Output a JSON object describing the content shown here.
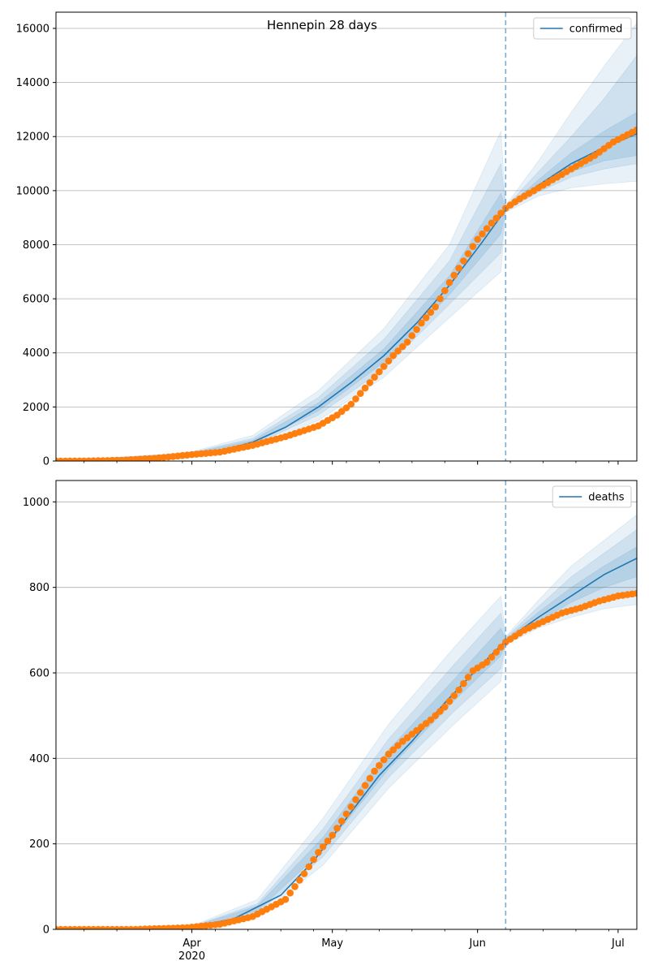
{
  "figure": {
    "title": "Hennepin 28 days"
  },
  "colors": {
    "model": "#1f77b4",
    "observed": "#ff7f0e",
    "band": "#1f77b4",
    "grid": "#b0b0b0"
  },
  "chart_data": [
    {
      "type": "line",
      "series": [
        {
          "name": "confirmed",
          "kind": "model-median"
        },
        {
          "kind": "observed-points"
        }
      ],
      "xlim": [
        "2020-03-03",
        "2020-07-05"
      ],
      "ylim": [
        0,
        16600
      ],
      "yticks": [
        0,
        2000,
        4000,
        6000,
        8000,
        10000,
        12000,
        14000,
        16000
      ],
      "yticklabels": [
        "0",
        "2000",
        "4000",
        "6000",
        "8000",
        "10000",
        "12000",
        "14000",
        "16000"
      ],
      "vline": "2020-06-07",
      "legend": "top-right",
      "grid": "y",
      "model_median": [
        [
          "2020-03-03",
          0
        ],
        [
          "2020-03-20",
          80
        ],
        [
          "2020-03-31",
          250
        ],
        [
          "2020-04-07",
          370
        ],
        [
          "2020-04-14",
          700
        ],
        [
          "2020-04-21",
          1250
        ],
        [
          "2020-04-28",
          2000
        ],
        [
          "2020-05-05",
          2900
        ],
        [
          "2020-05-12",
          3900
        ],
        [
          "2020-05-19",
          5100
        ],
        [
          "2020-05-26",
          6500
        ],
        [
          "2020-06-02",
          8100
        ],
        [
          "2020-06-07",
          9300
        ],
        [
          "2020-06-14",
          10200
        ],
        [
          "2020-06-21",
          11000
        ],
        [
          "2020-06-28",
          11600
        ],
        [
          "2020-07-05",
          12100
        ]
      ],
      "band_outer": [
        [
          "2020-03-03",
          0,
          0
        ],
        [
          "2020-03-31",
          200,
          300
        ],
        [
          "2020-04-14",
          500,
          950
        ],
        [
          "2020-04-28",
          1500,
          2600
        ],
        [
          "2020-05-12",
          3100,
          4900
        ],
        [
          "2020-05-26",
          5300,
          8000
        ],
        [
          "2020-06-06",
          7000,
          12200
        ],
        [
          "2020-06-07",
          9200,
          9450
        ],
        [
          "2020-06-14",
          9800,
          11100
        ],
        [
          "2020-06-21",
          10100,
          12900
        ],
        [
          "2020-06-28",
          10250,
          14600
        ],
        [
          "2020-07-05",
          10350,
          16200
        ]
      ],
      "band_mid": [
        [
          "2020-03-03",
          0,
          0
        ],
        [
          "2020-03-31",
          220,
          280
        ],
        [
          "2020-04-14",
          580,
          840
        ],
        [
          "2020-04-28",
          1700,
          2350
        ],
        [
          "2020-05-12",
          3400,
          4500
        ],
        [
          "2020-05-26",
          5800,
          7400
        ],
        [
          "2020-06-06",
          7700,
          11000
        ],
        [
          "2020-06-07",
          9250,
          9400
        ],
        [
          "2020-06-14",
          9950,
          10700
        ],
        [
          "2020-06-21",
          10500,
          12000
        ],
        [
          "2020-06-28",
          10800,
          13400
        ],
        [
          "2020-07-05",
          11000,
          15000
        ]
      ],
      "band_inner": [
        [
          "2020-03-03",
          0,
          0
        ],
        [
          "2020-03-31",
          235,
          265
        ],
        [
          "2020-04-14",
          630,
          770
        ],
        [
          "2020-04-28",
          1850,
          2150
        ],
        [
          "2020-05-12",
          3650,
          4150
        ],
        [
          "2020-05-26",
          6150,
          6850
        ],
        [
          "2020-06-06",
          8400,
          9900
        ],
        [
          "2020-06-07",
          9280,
          9350
        ],
        [
          "2020-06-14",
          10050,
          10400
        ],
        [
          "2020-06-21",
          10700,
          11400
        ],
        [
          "2020-06-28",
          11100,
          12200
        ],
        [
          "2020-07-05",
          11300,
          12900
        ]
      ],
      "observed": [
        [
          "2020-03-03",
          0
        ],
        [
          "2020-03-10",
          5
        ],
        [
          "2020-03-17",
          30
        ],
        [
          "2020-03-24",
          100
        ],
        [
          "2020-03-31",
          220
        ],
        [
          "2020-04-07",
          330
        ],
        [
          "2020-04-14",
          580
        ],
        [
          "2020-04-21",
          900
        ],
        [
          "2020-04-28",
          1300
        ],
        [
          "2020-05-02",
          1700
        ],
        [
          "2020-05-05",
          2100
        ],
        [
          "2020-05-08",
          2700
        ],
        [
          "2020-05-11",
          3300
        ],
        [
          "2020-05-14",
          3900
        ],
        [
          "2020-05-17",
          4400
        ],
        [
          "2020-05-20",
          5100
        ],
        [
          "2020-05-23",
          5700
        ],
        [
          "2020-05-26",
          6600
        ],
        [
          "2020-05-29",
          7400
        ],
        [
          "2020-06-01",
          8200
        ],
        [
          "2020-06-04",
          8800
        ],
        [
          "2020-06-07",
          9350
        ],
        [
          "2020-06-10",
          9700
        ],
        [
          "2020-06-14",
          10100
        ],
        [
          "2020-06-18",
          10500
        ],
        [
          "2020-06-22",
          10900
        ],
        [
          "2020-06-26",
          11300
        ],
        [
          "2020-06-30",
          11800
        ],
        [
          "2020-07-05",
          12250
        ]
      ]
    },
    {
      "type": "line",
      "series": [
        {
          "name": "deaths",
          "kind": "model-median"
        },
        {
          "kind": "observed-points"
        }
      ],
      "xlim": [
        "2020-03-03",
        "2020-07-05"
      ],
      "ylim": [
        0,
        1050
      ],
      "yticks": [
        0,
        200,
        400,
        600,
        800,
        1000
      ],
      "yticklabels": [
        "0",
        "200",
        "400",
        "600",
        "800",
        "1000"
      ],
      "xticks": [
        "2020-04-01",
        "2020-05-01",
        "2020-06-01",
        "2020-07-01"
      ],
      "xticklabels": [
        "Apr",
        "May",
        "Jun",
        "Jul"
      ],
      "xticklabels_year": [
        "2020",
        "",
        "",
        ""
      ],
      "vline": "2020-06-07",
      "legend": "top-right",
      "grid": "y",
      "model_median": [
        [
          "2020-03-03",
          0
        ],
        [
          "2020-03-25",
          0
        ],
        [
          "2020-04-01",
          5
        ],
        [
          "2020-04-10",
          25
        ],
        [
          "2020-04-20",
          80
        ],
        [
          "2020-04-27",
          160
        ],
        [
          "2020-05-04",
          260
        ],
        [
          "2020-05-11",
          360
        ],
        [
          "2020-05-18",
          440
        ],
        [
          "2020-05-25",
          530
        ],
        [
          "2020-06-01",
          610
        ],
        [
          "2020-06-07",
          675
        ],
        [
          "2020-06-14",
          730
        ],
        [
          "2020-06-21",
          780
        ],
        [
          "2020-06-28",
          830
        ],
        [
          "2020-07-05",
          868
        ]
      ],
      "band_outer": [
        [
          "2020-03-03",
          0,
          0
        ],
        [
          "2020-04-01",
          3,
          8
        ],
        [
          "2020-04-15",
          30,
          70
        ],
        [
          "2020-04-29",
          150,
          260
        ],
        [
          "2020-05-13",
          330,
          480
        ],
        [
          "2020-05-27",
          480,
          660
        ],
        [
          "2020-06-06",
          580,
          780
        ],
        [
          "2020-06-07",
          665,
          685
        ],
        [
          "2020-06-14",
          705,
          770
        ],
        [
          "2020-06-21",
          730,
          850
        ],
        [
          "2020-06-28",
          750,
          910
        ],
        [
          "2020-07-05",
          760,
          970
        ]
      ],
      "band_mid": [
        [
          "2020-03-03",
          0,
          0
        ],
        [
          "2020-04-01",
          4,
          7
        ],
        [
          "2020-04-15",
          38,
          60
        ],
        [
          "2020-04-29",
          170,
          235
        ],
        [
          "2020-05-13",
          355,
          445
        ],
        [
          "2020-05-27",
          510,
          620
        ],
        [
          "2020-06-06",
          610,
          740
        ],
        [
          "2020-06-07",
          668,
          682
        ],
        [
          "2020-06-14",
          712,
          755
        ],
        [
          "2020-06-21",
          750,
          825
        ],
        [
          "2020-06-28",
          775,
          880
        ],
        [
          "2020-07-05",
          790,
          935
        ]
      ],
      "band_inner": [
        [
          "2020-03-03",
          0,
          0
        ],
        [
          "2020-04-01",
          4.5,
          6
        ],
        [
          "2020-04-15",
          43,
          55
        ],
        [
          "2020-04-29",
          185,
          215
        ],
        [
          "2020-05-13",
          375,
          420
        ],
        [
          "2020-05-27",
          535,
          585
        ],
        [
          "2020-06-06",
          640,
          705
        ],
        [
          "2020-06-07",
          671,
          679
        ],
        [
          "2020-06-14",
          720,
          742
        ],
        [
          "2020-06-21",
          765,
          800
        ],
        [
          "2020-06-28",
          800,
          850
        ],
        [
          "2020-07-05",
          825,
          895
        ]
      ],
      "observed": [
        [
          "2020-03-03",
          0
        ],
        [
          "2020-03-20",
          0
        ],
        [
          "2020-03-31",
          4
        ],
        [
          "2020-04-07",
          12
        ],
        [
          "2020-04-14",
          30
        ],
        [
          "2020-04-21",
          70
        ],
        [
          "2020-04-25",
          130
        ],
        [
          "2020-04-28",
          180
        ],
        [
          "2020-05-01",
          220
        ],
        [
          "2020-05-04",
          270
        ],
        [
          "2020-05-07",
          320
        ],
        [
          "2020-05-10",
          370
        ],
        [
          "2020-05-13",
          410
        ],
        [
          "2020-05-16",
          440
        ],
        [
          "2020-05-19",
          465
        ],
        [
          "2020-05-22",
          490
        ],
        [
          "2020-05-25",
          520
        ],
        [
          "2020-05-28",
          560
        ],
        [
          "2020-05-31",
          605
        ],
        [
          "2020-06-03",
          625
        ],
        [
          "2020-06-07",
          672
        ],
        [
          "2020-06-11",
          700
        ],
        [
          "2020-06-15",
          720
        ],
        [
          "2020-06-19",
          740
        ],
        [
          "2020-06-23",
          752
        ],
        [
          "2020-06-27",
          768
        ],
        [
          "2020-07-01",
          780
        ],
        [
          "2020-07-05",
          786
        ]
      ]
    }
  ]
}
